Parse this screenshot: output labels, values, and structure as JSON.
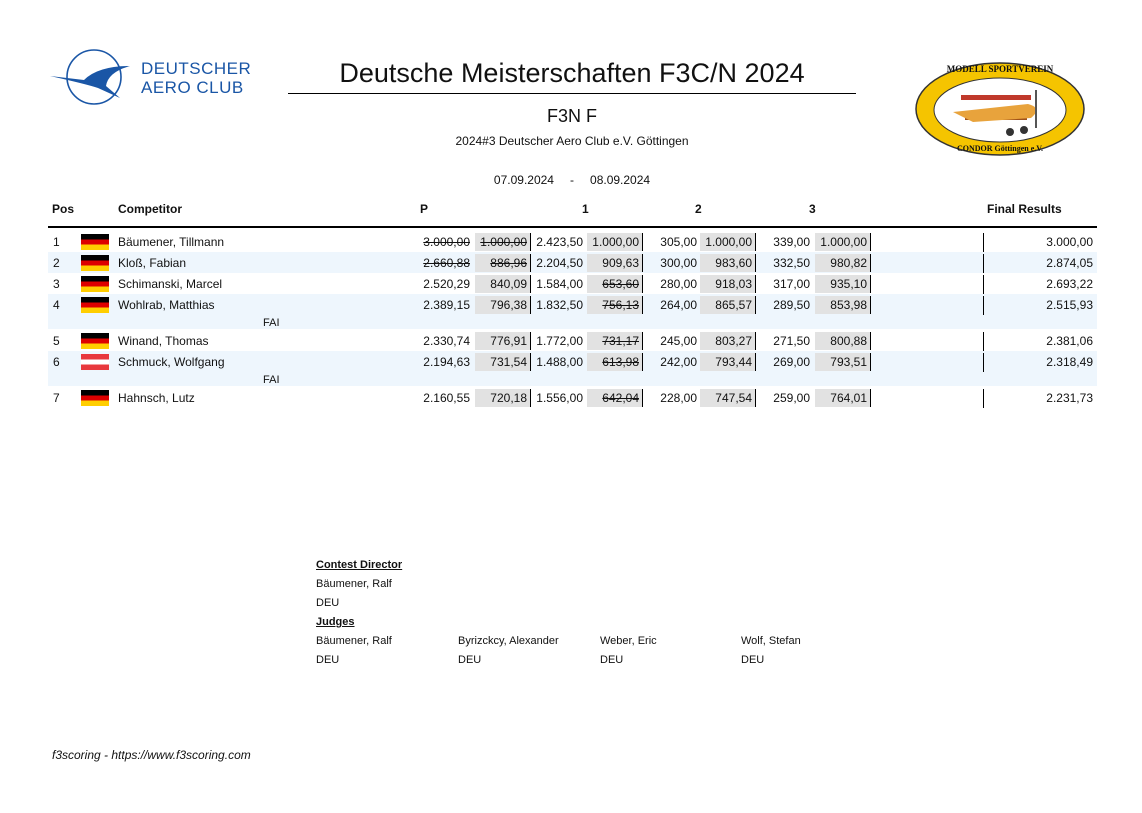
{
  "header": {
    "title": "Deutsche Meisterschaften F3C/N 2024",
    "class": "F3N F",
    "location": "2024#3 Deutscher Aero Club e.V. Göttingen",
    "date_from": "07.09.2024",
    "date_sep": "-",
    "date_to": "08.09.2024",
    "logo_left": {
      "line1": "DEUTSCHER",
      "line2": "AERO CLUB"
    },
    "logo_right": {
      "top": "MODELL SPORTVEREIN",
      "bottom": "CONDOR Göttingen e.V."
    }
  },
  "columns": {
    "pos": "Pos",
    "competitor": "Competitor",
    "p": "P",
    "r1": "1",
    "r2": "2",
    "r3": "3",
    "final": "Final Results"
  },
  "colors": {
    "alt_row": "#eef6fd",
    "score_box": "#e2e2e2",
    "dac_blue": "#1a56a6"
  },
  "rows": [
    {
      "pos": "1",
      "flag": "DEU",
      "name": "Bäumener, Tillmann",
      "cells": [
        {
          "v": "3.000,00",
          "s": true
        },
        {
          "v": "1.000,00",
          "s": true
        },
        {
          "v": "2.423,50"
        },
        {
          "v": "1.000,00"
        },
        {
          "v": "305,00"
        },
        {
          "v": "1.000,00"
        },
        {
          "v": "339,00"
        },
        {
          "v": "1.000,00"
        }
      ],
      "final": "3.000,00"
    },
    {
      "pos": "2",
      "flag": "DEU",
      "name": "Kloß, Fabian",
      "cells": [
        {
          "v": "2.660,88",
          "s": true
        },
        {
          "v": "886,96",
          "s": true
        },
        {
          "v": "2.204,50"
        },
        {
          "v": "909,63"
        },
        {
          "v": "300,00"
        },
        {
          "v": "983,60"
        },
        {
          "v": "332,50"
        },
        {
          "v": "980,82"
        }
      ],
      "final": "2.874,05"
    },
    {
      "pos": "3",
      "flag": "DEU",
      "name": "Schimanski, Marcel",
      "cells": [
        {
          "v": "2.520,29"
        },
        {
          "v": "840,09"
        },
        {
          "v": "1.584,00"
        },
        {
          "v": "653,60",
          "s": true
        },
        {
          "v": "280,00"
        },
        {
          "v": "918,03"
        },
        {
          "v": "317,00"
        },
        {
          "v": "935,10"
        }
      ],
      "final": "2.693,22"
    },
    {
      "pos": "4",
      "flag": "DEU",
      "name": "Wohlrab, Matthias",
      "fai": "FAI",
      "cells": [
        {
          "v": "2.389,15"
        },
        {
          "v": "796,38"
        },
        {
          "v": "1.832,50"
        },
        {
          "v": "756,13",
          "s": true
        },
        {
          "v": "264,00"
        },
        {
          "v": "865,57"
        },
        {
          "v": "289,50"
        },
        {
          "v": "853,98"
        }
      ],
      "final": "2.515,93"
    },
    {
      "pos": "5",
      "flag": "DEU",
      "name": "Winand, Thomas",
      "cells": [
        {
          "v": "2.330,74"
        },
        {
          "v": "776,91"
        },
        {
          "v": "1.772,00"
        },
        {
          "v": "731,17",
          "s": true
        },
        {
          "v": "245,00"
        },
        {
          "v": "803,27"
        },
        {
          "v": "271,50"
        },
        {
          "v": "800,88"
        }
      ],
      "final": "2.381,06"
    },
    {
      "pos": "6",
      "flag": "AUT",
      "name": "Schmuck, Wolfgang",
      "fai": "FAI",
      "cells": [
        {
          "v": "2.194,63"
        },
        {
          "v": "731,54"
        },
        {
          "v": "1.488,00"
        },
        {
          "v": "613,98",
          "s": true
        },
        {
          "v": "242,00"
        },
        {
          "v": "793,44"
        },
        {
          "v": "269,00"
        },
        {
          "v": "793,51"
        }
      ],
      "final": "2.318,49"
    },
    {
      "pos": "7",
      "flag": "DEU",
      "name": "Hahnsch, Lutz",
      "cells": [
        {
          "v": "2.160,55"
        },
        {
          "v": "720,18"
        },
        {
          "v": "1.556,00"
        },
        {
          "v": "642,04",
          "s": true
        },
        {
          "v": "228,00"
        },
        {
          "v": "747,54"
        },
        {
          "v": "259,00"
        },
        {
          "v": "764,01"
        }
      ],
      "final": "2.231,73"
    }
  ],
  "officials": {
    "director_label": "Contest Director",
    "director": {
      "name": "Bäumener, Ralf",
      "country": "DEU"
    },
    "judges_label": "Judges",
    "judges": [
      {
        "name": "Bäumener, Ralf",
        "country": "DEU"
      },
      {
        "name": "Byrizckcy, Alexander",
        "country": "DEU"
      },
      {
        "name": "Weber, Eric",
        "country": "DEU"
      },
      {
        "name": "Wolf, Stefan",
        "country": "DEU"
      }
    ]
  },
  "footer": "f3scoring - https://www.f3scoring.com"
}
